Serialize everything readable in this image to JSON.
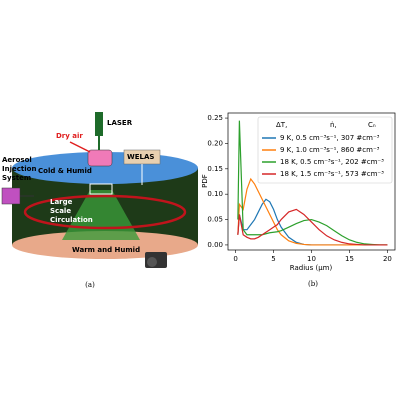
{
  "diagram": {
    "laser": "LASER",
    "dry_air": "Dry air",
    "welas": "WELAS",
    "cold": "Cold & Humid",
    "aerosol": [
      "Aerosol",
      "Injection",
      "System"
    ],
    "circulation": [
      "Large",
      "Scale",
      "Circulation"
    ],
    "warm": "Warm and Humid",
    "caption": "(a)"
  },
  "chart_data": {
    "type": "line",
    "ylabel": "PDF",
    "xlabel": "Radius (μm)",
    "legend_header": [
      "ΔT,",
      "ṅ,",
      "Cₙ"
    ],
    "x": [
      0.3,
      0.5,
      1,
      1.5,
      2,
      2.5,
      3,
      3.5,
      4,
      4.5,
      5,
      5.5,
      6,
      7,
      8,
      9,
      10,
      11,
      12,
      13,
      14,
      15,
      16,
      17,
      18,
      19,
      20
    ],
    "series": [
      {
        "name": "9 K, 0.5 cm⁻³s⁻¹, 307 #cm⁻³",
        "color": "#1f77b4",
        "values": [
          0.02,
          0.06,
          0.03,
          0.03,
          0.04,
          0.05,
          0.065,
          0.08,
          0.09,
          0.085,
          0.07,
          0.05,
          0.035,
          0.015,
          0.005,
          0.001,
          0,
          0,
          0,
          0,
          0,
          0,
          0,
          0,
          0,
          0,
          0
        ]
      },
      {
        "name": "9 K, 1.0 cm⁻³s⁻¹, 860 #cm⁻³",
        "color": "#ff7f0e",
        "values": [
          0.02,
          0.08,
          0.07,
          0.11,
          0.13,
          0.12,
          0.105,
          0.09,
          0.075,
          0.06,
          0.045,
          0.03,
          0.02,
          0.008,
          0.003,
          0.001,
          0,
          0,
          0,
          0,
          0,
          0,
          0,
          0,
          0,
          0,
          0
        ]
      },
      {
        "name": "18 K, 0.5 cm⁻³s⁻¹, 202 #cm⁻³",
        "color": "#2ca02c",
        "values": [
          0.05,
          0.245,
          0.03,
          0.02,
          0.02,
          0.02,
          0.02,
          0.02,
          0.022,
          0.024,
          0.025,
          0.026,
          0.028,
          0.035,
          0.042,
          0.048,
          0.05,
          0.045,
          0.038,
          0.028,
          0.018,
          0.01,
          0.005,
          0.002,
          0.001,
          0,
          0
        ]
      },
      {
        "name": "18 K, 1.5 cm⁻³s⁻¹, 573 #cm⁻³",
        "color": "#d62728",
        "values": [
          0.02,
          0.06,
          0.02,
          0.015,
          0.012,
          0.012,
          0.015,
          0.02,
          0.025,
          0.03,
          0.035,
          0.04,
          0.05,
          0.065,
          0.07,
          0.06,
          0.045,
          0.03,
          0.018,
          0.01,
          0.005,
          0.002,
          0.001,
          0,
          0,
          0,
          0
        ]
      }
    ],
    "xlim": [
      -1,
      21
    ],
    "xticks": [
      0,
      5,
      10,
      15,
      20
    ],
    "ylim": [
      -0.01,
      0.26
    ],
    "yticks": [
      {
        "value": 0,
        "label": "0.00"
      },
      {
        "value": 0.05,
        "label": "0.05"
      },
      {
        "value": 0.1,
        "label": "0.10"
      },
      {
        "value": 0.15,
        "label": "0.15"
      },
      {
        "value": 0.2,
        "label": "0.20"
      },
      {
        "value": 0.25,
        "label": "0.25"
      }
    ]
  },
  "caption_b": "(b)"
}
